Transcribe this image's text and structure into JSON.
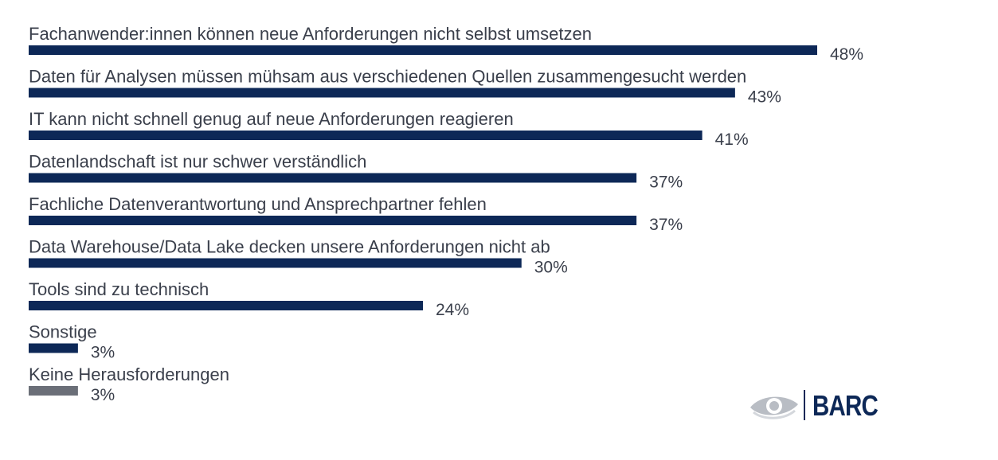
{
  "chart_data": {
    "type": "bar",
    "orientation": "horizontal",
    "unit": "%",
    "xlim": [
      0,
      48
    ],
    "categories": [
      "Fachanwender:innen können neue Anforderungen nicht selbst umsetzen",
      "Daten für Analysen müssen mühsam aus verschiedenen Quellen zusammengesucht werden",
      "IT kann nicht schnell genug auf neue Anforderungen reagieren",
      "Datenlandschaft ist nur schwer verständlich",
      "Fachliche Datenverantwortung und Ansprechpartner fehlen",
      "Data Warehouse/Data Lake decken unsere Anforderungen nicht ab",
      "Tools sind zu technisch",
      "Sonstige",
      "Keine Herausforderungen"
    ],
    "values": [
      48,
      43,
      41,
      37,
      37,
      30,
      24,
      3,
      3
    ],
    "value_labels": [
      "48%",
      "43%",
      "41%",
      "37%",
      "37%",
      "30%",
      "24%",
      "3%",
      "3%"
    ],
    "bar_colors": [
      "#0d2857",
      "#0d2857",
      "#0d2857",
      "#0d2857",
      "#0d2857",
      "#0d2857",
      "#0d2857",
      "#0d2857",
      "#6b6f78"
    ],
    "grid": false,
    "legend": "none"
  },
  "colors": {
    "primary_bar": "#0d2857",
    "secondary_bar": "#6b6f78",
    "text": "#3a3f4b",
    "logo_eye": "#b9bdc4",
    "logo_text": "#0d2857"
  },
  "logo": {
    "text": "BARC",
    "icon": "eye-icon"
  }
}
